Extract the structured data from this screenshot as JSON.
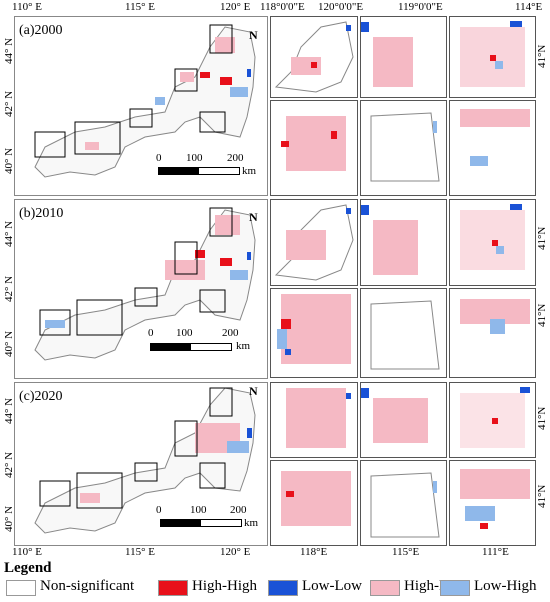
{
  "top_ticks": {
    "left_map": [
      "110° E",
      "115° E",
      "120° E"
    ],
    "insets": [
      "118°0'0\"E",
      "120°0'0\"E",
      "119°0'0\"E",
      "114°E"
    ]
  },
  "bottom_ticks": {
    "left_map": [
      "110° E",
      "115° E",
      "120° E"
    ],
    "insets": [
      "118°E",
      "115°E",
      "111°E"
    ]
  },
  "lat_ticks": [
    "44° N",
    "42° N",
    "40° N"
  ],
  "right_lat": "41°N",
  "panels": [
    {
      "label": "(a)2000",
      "scale": [
        "0",
        "100",
        "200"
      ],
      "unit": "km",
      "north": "N"
    },
    {
      "label": "(b)2010",
      "scale": [
        "0",
        "100",
        "200"
      ],
      "unit": "km",
      "north": "N"
    },
    {
      "label": "(c)2020",
      "scale": [
        "0",
        "100",
        "200"
      ],
      "unit": "km",
      "north": "N"
    }
  ],
  "legend": {
    "title": "Legend",
    "items": [
      {
        "label": "Non-significant",
        "color": "#ffffff"
      },
      {
        "label": "High-High",
        "color": "#e8101a"
      },
      {
        "label": "Low-Low",
        "color": "#1a52d6"
      },
      {
        "label": "High-Low",
        "color": "#f5b9c4"
      },
      {
        "label": "Low-High",
        "color": "#8fb8ea"
      }
    ]
  },
  "colors": {
    "hh": "#e8101a",
    "ll": "#1a52d6",
    "hl": "#f5b9c4",
    "lh": "#8fb8ea",
    "border": "#666666"
  }
}
